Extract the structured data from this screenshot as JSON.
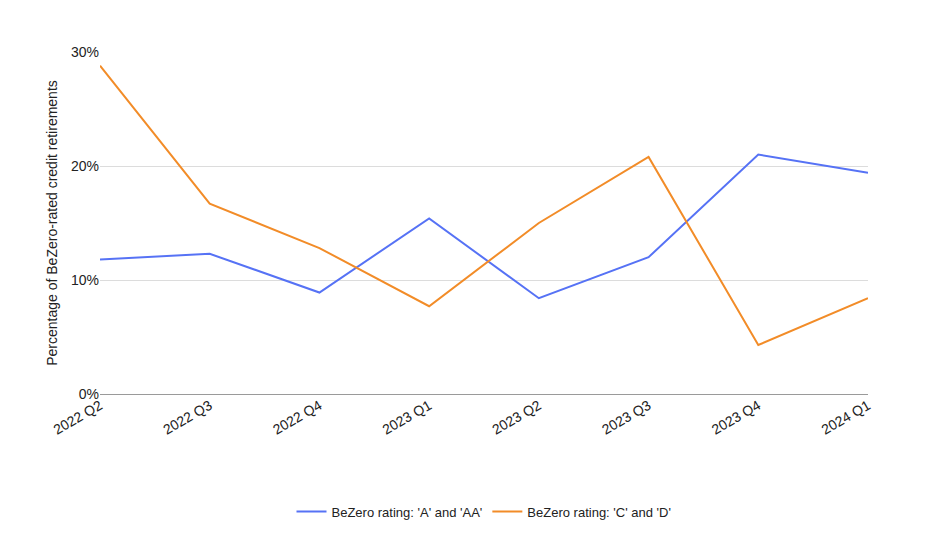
{
  "chart_data": {
    "type": "line",
    "y_label": "Percentage of BeZero-rated credit retirements",
    "categories": [
      "2022 Q2",
      "2022 Q3",
      "2022 Q4",
      "2023 Q1",
      "2023 Q2",
      "2023 Q3",
      "2023 Q4",
      "2024 Q1"
    ],
    "series": [
      {
        "name": "BeZero rating: 'A' and 'AA'",
        "color": "#5672f5",
        "values": [
          11.8,
          12.3,
          8.9,
          15.4,
          8.4,
          12.0,
          21.0,
          19.4
        ]
      },
      {
        "name": "BeZero rating: 'C' and 'D'",
        "color": "#f28c28",
        "values": [
          28.8,
          16.7,
          12.8,
          7.7,
          15.0,
          20.8,
          4.3,
          8.4
        ]
      }
    ],
    "ylim": [
      0,
      30
    ],
    "yticks": [
      {
        "value": 0,
        "label": "0%"
      },
      {
        "value": 10,
        "label": "10%"
      },
      {
        "value": 20,
        "label": "20%"
      },
      {
        "value": 30,
        "label": "30%"
      }
    ],
    "grid": true,
    "legend": "bottom"
  }
}
